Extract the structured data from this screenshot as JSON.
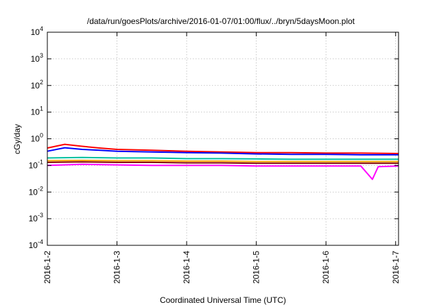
{
  "chart_data": {
    "type": "line",
    "title": "/data/run/goesPlots/archive/2016-01-07/01:00/flux/../bryn/5daysMoon.plot",
    "xlabel": "Coordinated Universal Time (UTC)",
    "ylabel": "cGy/day",
    "x_range": [
      "2016-01-02T00:00",
      "2016-01-07T01:00"
    ],
    "x_ticks": [
      "2016-1-2",
      "2016-1-3",
      "2016-1-4",
      "2016-1-5",
      "2016-1-6",
      "2016-1-7"
    ],
    "y_scale": "log",
    "ylim": [
      0.0001,
      10000
    ],
    "y_ticks": [
      {
        "base": "10",
        "exp": "-4"
      },
      {
        "base": "10",
        "exp": "-3"
      },
      {
        "base": "10",
        "exp": "-2"
      },
      {
        "base": "10",
        "exp": "-1"
      },
      {
        "base": "10",
        "exp": "0"
      },
      {
        "base": "10",
        "exp": "1"
      },
      {
        "base": "10",
        "exp": "2"
      },
      {
        "base": "10",
        "exp": "3"
      },
      {
        "base": "10",
        "exp": "4"
      }
    ],
    "grid": true,
    "series": [
      {
        "color": "#ff0000",
        "x": [
          "2016-01-02T00:00",
          "2016-01-02T06:00",
          "2016-01-02T12:00",
          "2016-01-02T18:00",
          "2016-01-03T00:00",
          "2016-01-03T12:00",
          "2016-01-04T00:00",
          "2016-01-04T12:00",
          "2016-01-05T00:00",
          "2016-01-05T12:00",
          "2016-01-06T00:00",
          "2016-01-06T12:00",
          "2016-01-07T01:00"
        ],
        "values": [
          0.45,
          0.62,
          0.52,
          0.45,
          0.4,
          0.37,
          0.34,
          0.32,
          0.3,
          0.3,
          0.29,
          0.29,
          0.28
        ]
      },
      {
        "color": "#0000ff",
        "x": [
          "2016-01-02T00:00",
          "2016-01-02T06:00",
          "2016-01-02T12:00",
          "2016-01-02T18:00",
          "2016-01-03T00:00",
          "2016-01-03T12:00",
          "2016-01-04T00:00",
          "2016-01-04T12:00",
          "2016-01-05T00:00",
          "2016-01-05T12:00",
          "2016-01-06T00:00",
          "2016-01-06T12:00",
          "2016-01-07T01:00"
        ],
        "values": [
          0.34,
          0.46,
          0.4,
          0.37,
          0.34,
          0.32,
          0.3,
          0.29,
          0.27,
          0.26,
          0.26,
          0.25,
          0.25
        ]
      },
      {
        "color": "#00c0a0",
        "x": [
          "2016-01-02T00:00",
          "2016-01-02T12:00",
          "2016-01-03T00:00",
          "2016-01-03T12:00",
          "2016-01-04T00:00",
          "2016-01-04T12:00",
          "2016-01-05T00:00",
          "2016-01-05T12:00",
          "2016-01-06T00:00",
          "2016-01-06T12:00",
          "2016-01-07T01:00"
        ],
        "values": [
          0.19,
          0.2,
          0.19,
          0.19,
          0.18,
          0.18,
          0.175,
          0.17,
          0.17,
          0.17,
          0.17
        ]
      },
      {
        "color": "#ffa500",
        "x": [
          "2016-01-02T00:00",
          "2016-01-02T12:00",
          "2016-01-03T00:00",
          "2016-01-03T12:00",
          "2016-01-04T00:00",
          "2016-01-04T12:00",
          "2016-01-05T00:00",
          "2016-01-05T12:00",
          "2016-01-06T00:00",
          "2016-01-06T12:00",
          "2016-01-07T01:00"
        ],
        "values": [
          0.15,
          0.155,
          0.15,
          0.15,
          0.145,
          0.145,
          0.14,
          0.14,
          0.14,
          0.14,
          0.14
        ]
      },
      {
        "color": "#800000",
        "x": [
          "2016-01-02T00:00",
          "2016-01-02T12:00",
          "2016-01-03T00:00",
          "2016-01-03T12:00",
          "2016-01-04T00:00",
          "2016-01-04T12:00",
          "2016-01-05T00:00",
          "2016-01-05T12:00",
          "2016-01-06T00:00",
          "2016-01-06T12:00",
          "2016-01-07T01:00"
        ],
        "values": [
          0.13,
          0.135,
          0.13,
          0.13,
          0.125,
          0.125,
          0.12,
          0.12,
          0.12,
          0.12,
          0.12
        ]
      },
      {
        "color": "#ff00ff",
        "x": [
          "2016-01-02T00:00",
          "2016-01-02T12:00",
          "2016-01-03T00:00",
          "2016-01-03T12:00",
          "2016-01-04T00:00",
          "2016-01-04T12:00",
          "2016-01-05T00:00",
          "2016-01-05T12:00",
          "2016-01-06T00:00",
          "2016-01-06T12:00",
          "2016-01-06T16:00",
          "2016-01-06T18:00",
          "2016-01-07T01:00"
        ],
        "values": [
          0.1,
          0.11,
          0.105,
          0.1,
          0.1,
          0.1,
          0.095,
          0.095,
          0.095,
          0.095,
          0.03,
          0.09,
          0.095
        ]
      }
    ]
  }
}
